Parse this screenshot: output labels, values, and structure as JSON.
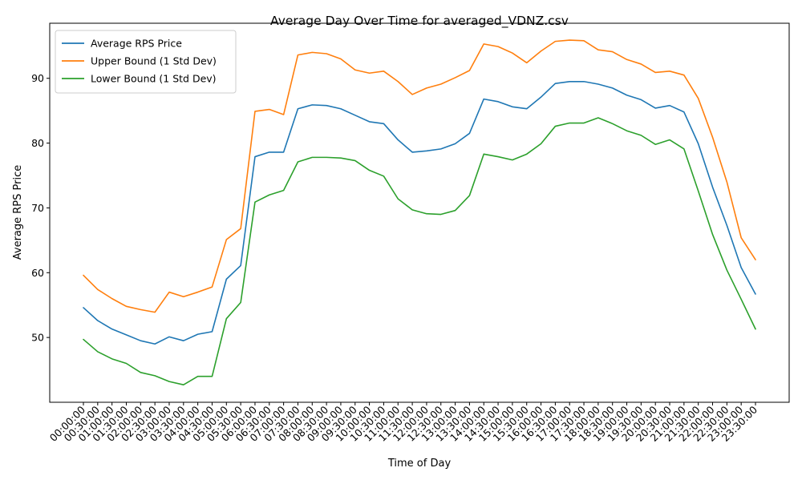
{
  "chart_data": {
    "type": "line",
    "title": "Average Day Over Time for averaged_VDNZ.csv",
    "xlabel": "Time of Day",
    "ylabel": "Average RPS Price",
    "ylim": [
      40.0,
      98.5
    ],
    "yticks": [
      50,
      60,
      70,
      80,
      90
    ],
    "grid": false,
    "legend_position": "top-left",
    "x": [
      "00:00:00",
      "00:30:00",
      "01:00:00",
      "01:30:00",
      "02:00:00",
      "02:30:00",
      "03:00:00",
      "03:30:00",
      "04:00:00",
      "04:30:00",
      "05:00:00",
      "05:30:00",
      "06:00:00",
      "06:30:00",
      "07:00:00",
      "07:30:00",
      "08:00:00",
      "08:30:00",
      "09:00:00",
      "09:30:00",
      "10:00:00",
      "10:30:00",
      "11:00:00",
      "11:30:00",
      "12:00:00",
      "12:30:00",
      "13:00:00",
      "13:30:00",
      "14:00:00",
      "14:30:00",
      "15:00:00",
      "15:30:00",
      "16:00:00",
      "16:30:00",
      "17:00:00",
      "17:30:00",
      "18:00:00",
      "18:30:00",
      "19:00:00",
      "19:30:00",
      "20:00:00",
      "20:30:00",
      "21:00:00",
      "21:30:00",
      "22:00:00",
      "22:30:00",
      "23:00:00",
      "23:30:00"
    ],
    "series": [
      {
        "name": "Average RPS Price",
        "color": "#1f77b4",
        "values": [
          54.6,
          52.6,
          51.3,
          50.4,
          49.5,
          49.0,
          50.1,
          49.5,
          50.5,
          50.9,
          59.0,
          61.1,
          77.9,
          78.6,
          78.6,
          85.3,
          85.9,
          85.8,
          85.3,
          84.3,
          83.3,
          83.0,
          80.5,
          78.6,
          78.8,
          79.1,
          79.9,
          81.5,
          86.8,
          86.4,
          85.6,
          85.3,
          87.1,
          89.2,
          89.5,
          89.5,
          89.1,
          88.5,
          87.4,
          86.7,
          85.4,
          85.8,
          84.8,
          79.9,
          73.2,
          67.3,
          60.8,
          56.7
        ]
      },
      {
        "name": "Upper Bound (1 Std Dev)",
        "color": "#ff7f0e",
        "values": [
          59.6,
          57.4,
          56.0,
          54.8,
          54.3,
          53.9,
          57.0,
          56.3,
          57.0,
          57.8,
          65.1,
          66.8,
          84.9,
          85.2,
          84.4,
          93.6,
          94.0,
          93.8,
          93.0,
          91.3,
          90.8,
          91.1,
          89.5,
          87.5,
          88.5,
          89.1,
          90.1,
          91.2,
          95.3,
          94.9,
          93.9,
          92.4,
          94.2,
          95.7,
          95.9,
          95.8,
          94.4,
          94.1,
          92.9,
          92.2,
          90.9,
          91.1,
          90.5,
          86.9,
          80.9,
          74.0,
          65.4,
          62.0
        ]
      },
      {
        "name": "Lower Bound (1 Std Dev)",
        "color": "#2ca02c",
        "values": [
          49.7,
          47.8,
          46.7,
          46.0,
          44.6,
          44.1,
          43.2,
          42.7,
          44.0,
          44.0,
          52.9,
          55.4,
          70.9,
          72.0,
          72.7,
          77.1,
          77.8,
          77.8,
          77.7,
          77.3,
          75.8,
          74.9,
          71.4,
          69.7,
          69.1,
          69.0,
          69.6,
          71.9,
          78.3,
          77.9,
          77.4,
          78.3,
          79.9,
          82.6,
          83.1,
          83.1,
          83.9,
          83.0,
          81.9,
          81.2,
          79.8,
          80.5,
          79.1,
          72.6,
          65.9,
          60.4,
          55.9,
          51.3
        ]
      }
    ]
  }
}
